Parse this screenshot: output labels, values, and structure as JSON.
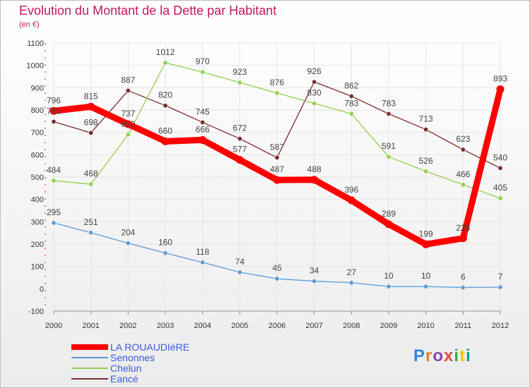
{
  "header": {
    "title": "Evolution du Montant de la Dette par Habitant",
    "subtitle": "(en €)"
  },
  "brand": {
    "logo_text": "Proxiti"
  },
  "colors": {
    "title": "#c2185b",
    "legend_text": "#3b5bdb",
    "axis_tick": "#c2185b"
  },
  "chart_data": {
    "type": "line",
    "title": "Evolution du Montant de la Dette par Habitant",
    "subtitle": "(en €)",
    "xlabel": "",
    "ylabel": "",
    "x": [
      "2000",
      "2001",
      "2002",
      "2003",
      "2004",
      "2005",
      "2006",
      "2007",
      "2008",
      "2009",
      "2010",
      "2011",
      "2012"
    ],
    "ylim": [
      -100,
      1100
    ],
    "yticks": [
      -100,
      0,
      100,
      200,
      300,
      400,
      500,
      600,
      700,
      800,
      900,
      1000,
      1100
    ],
    "grid": true,
    "legend_position": "bottom-left",
    "series": [
      {
        "name": "LA ROUAUDIèRE",
        "color": "#ff0000",
        "values": [
          796,
          815,
          737,
          660,
          666,
          577,
          487,
          488,
          396,
          289,
          199,
          226,
          893
        ]
      },
      {
        "name": "Senonnes",
        "color": "#5b9bd5",
        "values": [
          295,
          251,
          204,
          160,
          118,
          74,
          45,
          34,
          27,
          10,
          10,
          6,
          7
        ]
      },
      {
        "name": "Chelun",
        "color": "#92d050",
        "values": [
          484,
          468,
          690,
          1012,
          970,
          923,
          876,
          830,
          783,
          591,
          526,
          466,
          405
        ]
      },
      {
        "name": "Eancé",
        "color": "#7b2c2c",
        "values": [
          748,
          698,
          887,
          820,
          745,
          672,
          587,
          926,
          862,
          783,
          713,
          623,
          540
        ]
      }
    ]
  }
}
